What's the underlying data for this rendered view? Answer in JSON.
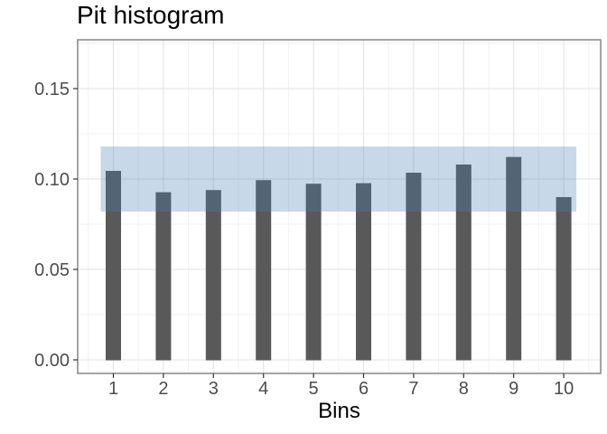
{
  "figure": {
    "background_color": "#ffffff"
  },
  "chart_data": {
    "type": "bar",
    "title": "Pit histogram",
    "xlabel": "Bins",
    "ylabel": "",
    "categories": [
      "1",
      "2",
      "3",
      "4",
      "5",
      "6",
      "7",
      "8",
      "9",
      "10"
    ],
    "values": [
      0.1045,
      0.0927,
      0.0939,
      0.0994,
      0.0974,
      0.0977,
      0.1035,
      0.108,
      0.1122,
      0.09
    ],
    "bar_color": "#595959",
    "band": {
      "name": "expected-range-band",
      "ymin": 0.082,
      "ymax": 0.118,
      "color_rgba": "rgba(70,130,180,0.30)",
      "base_color": "#4682b4"
    },
    "y_ticks": [
      0,
      0.05,
      0.1,
      0.15
    ],
    "y_tick_labels": [
      "0.00",
      "0.05",
      "0.10",
      "0.15"
    ],
    "y_minor_gridlines": [
      0.025,
      0.075,
      0.125,
      0.175
    ],
    "ylim": [
      -0.0075,
      0.177
    ],
    "grid": "major-and-minor",
    "legend_position": "none",
    "colors": {
      "tick_label": "#4d4d4d",
      "tick_mark": "#333333",
      "grid_major": "#e6e6e6",
      "grid_minor": "#f2f2f2",
      "panel_border": "#858585",
      "panel_background": "#ffffff",
      "title_text": "#000000",
      "axis_title_text": "#000000"
    }
  }
}
